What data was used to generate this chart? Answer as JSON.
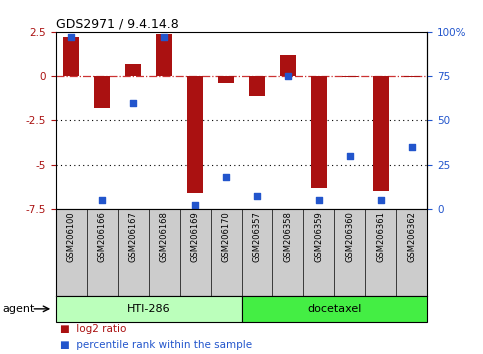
{
  "title": "GDS2971 / 9.4.14.8",
  "samples": [
    "GSM206100",
    "GSM206166",
    "GSM206167",
    "GSM206168",
    "GSM206169",
    "GSM206170",
    "GSM206357",
    "GSM206358",
    "GSM206359",
    "GSM206360",
    "GSM206361",
    "GSM206362"
  ],
  "log2_ratio": [
    2.2,
    -1.8,
    0.7,
    2.4,
    -6.6,
    -0.4,
    -1.1,
    1.2,
    -6.3,
    -0.05,
    -6.5,
    -0.05
  ],
  "percentile_rank": [
    97,
    5,
    60,
    97,
    2,
    18,
    7,
    75,
    5,
    30,
    5,
    35
  ],
  "ylim": [
    -7.5,
    2.5
  ],
  "ylim_right": [
    0,
    100
  ],
  "yticks_left": [
    2.5,
    0.0,
    -2.5,
    -5.0,
    -7.5
  ],
  "yticks_right": [
    100,
    75,
    50,
    25,
    0
  ],
  "bar_color": "#aa1111",
  "dot_color": "#2255cc",
  "hline_y": 0,
  "hline_color": "#cc3333",
  "grid_color": "#000000",
  "group1_label": "HTI-286",
  "group2_label": "docetaxel",
  "group1_count": 6,
  "agent_label": "agent",
  "legend_bar": "log2 ratio",
  "legend_dot": "percentile rank within the sample",
  "bg_plot": "#ffffff",
  "bg_sample_row": "#cccccc",
  "group1_color": "#bbffbb",
  "group2_color": "#44ee44",
  "bar_width": 0.5
}
